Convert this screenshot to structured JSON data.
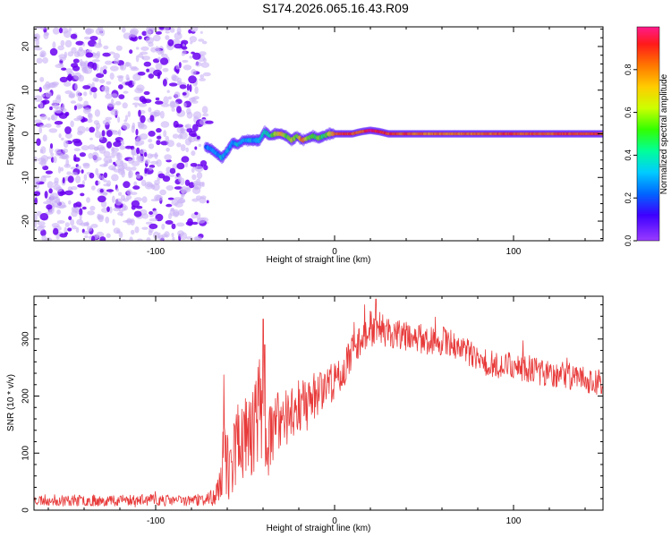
{
  "title": "S174.2026.065.16.43.R09",
  "colors": {
    "snr_line": "#e83a3a",
    "noise_dot": "#6a00f0",
    "noise_light": "#c9b3f5",
    "background": "#ffffff"
  },
  "chart_data": [
    {
      "type": "heatmap",
      "name": "spectrogram",
      "xlabel": "Height of straight line (km)",
      "ylabel": "Frequency (Hz)",
      "xlim": [
        -168,
        150
      ],
      "ylim": [
        -24.5,
        24.5
      ],
      "xticks": [
        -100,
        0,
        100
      ],
      "xtick_labels": [
        "-100",
        "0",
        "100"
      ],
      "yticks": [
        -20,
        -10,
        0,
        10,
        20
      ],
      "ytick_labels": [
        "-20",
        "-10",
        "0",
        "10",
        "20"
      ],
      "noise_region_x": [
        -168,
        -72
      ],
      "ridge": {
        "description": "Dominant frequency line vs height",
        "x": [
          -72,
          -69,
          -66,
          -63,
          -60,
          -57,
          -54,
          -51,
          -48,
          -45,
          -42,
          -39,
          -36,
          -33,
          -30,
          -27,
          -24,
          -21,
          -18,
          -15,
          -12,
          -9,
          -6,
          -3,
          0,
          5,
          10,
          15,
          20,
          25,
          30,
          40,
          50,
          60,
          70,
          80,
          90,
          100,
          110,
          120,
          130,
          140,
          150
        ],
        "frequency": [
          -3,
          -3.5,
          -4.5,
          -5.5,
          -4,
          -2,
          -2.5,
          -1.5,
          -1.5,
          -1.5,
          -1.5,
          0.5,
          -0.5,
          0,
          0,
          -0.5,
          -1.5,
          -0.5,
          -1.5,
          -1,
          -0.5,
          -1,
          -0.5,
          0,
          0,
          0,
          0,
          0.5,
          0.8,
          0.5,
          0,
          0,
          0,
          0,
          0,
          0,
          0,
          0,
          0,
          0,
          0,
          0,
          0
        ],
        "amplitude": [
          0.25,
          0.3,
          0.3,
          0.35,
          0.3,
          0.3,
          0.35,
          0.3,
          0.35,
          0.3,
          0.35,
          0.4,
          0.45,
          0.6,
          0.75,
          0.5,
          0.65,
          0.5,
          0.85,
          0.6,
          0.5,
          0.55,
          0.45,
          0.6,
          0.8,
          0.9,
          0.85,
          0.8,
          0.95,
          0.9,
          0.85,
          0.85,
          0.8,
          0.8,
          0.8,
          0.8,
          0.85,
          0.85,
          0.85,
          0.85,
          0.85,
          0.85,
          0.85
        ]
      },
      "colorbar": {
        "label": "Normalized spectral amplitude",
        "range": [
          0,
          1
        ],
        "ticks": [
          0.0,
          0.2,
          0.4,
          0.6,
          0.8
        ],
        "tick_labels": [
          "0.0",
          "0.2",
          "0.4",
          "0.6",
          "0.8"
        ],
        "colormap": "rainbow"
      }
    },
    {
      "type": "line",
      "name": "snr",
      "xlabel": "Height of straight line (km)",
      "ylabel": "SNR (10 * v/v)",
      "xlim": [
        -168,
        150
      ],
      "ylim": [
        0,
        375
      ],
      "xticks": [
        -100,
        0,
        100
      ],
      "xtick_labels": [
        "-100",
        "0",
        "100"
      ],
      "yticks": [
        0,
        100,
        200,
        300
      ],
      "ytick_labels": [
        "0",
        "100",
        "200",
        "300"
      ],
      "series": [
        {
          "name": "SNR",
          "x": [
            -168,
            -150,
            -130,
            -110,
            -90,
            -75,
            -68,
            -64,
            -62,
            -58,
            -55,
            -50,
            -45,
            -42,
            -38,
            -35,
            -30,
            -25,
            -20,
            -15,
            -10,
            -5,
            0,
            5,
            10,
            15,
            20,
            25,
            30,
            40,
            50,
            60,
            70,
            80,
            90,
            100,
            110,
            120,
            130,
            140,
            150
          ],
          "value": [
            18,
            17,
            17,
            18,
            17,
            18,
            20,
            40,
            100,
            70,
            120,
            130,
            140,
            190,
            110,
            130,
            160,
            170,
            190,
            180,
            210,
            220,
            225,
            245,
            280,
            305,
            320,
            320,
            310,
            305,
            300,
            295,
            290,
            260,
            255,
            255,
            245,
            240,
            235,
            230,
            220
          ],
          "noise": [
            10,
            10,
            10,
            10,
            10,
            10,
            12,
            30,
            80,
            55,
            80,
            80,
            80,
            90,
            60,
            60,
            60,
            55,
            55,
            45,
            45,
            40,
            35,
            30,
            30,
            30,
            30,
            28,
            28,
            26,
            26,
            26,
            26,
            24,
            24,
            24,
            24,
            24,
            24,
            24,
            24
          ],
          "spikes": [
            {
              "x": -40,
              "value": 335
            },
            {
              "x": -39,
              "value": 290
            },
            {
              "x": 23,
              "value": 370
            }
          ]
        }
      ]
    }
  ]
}
